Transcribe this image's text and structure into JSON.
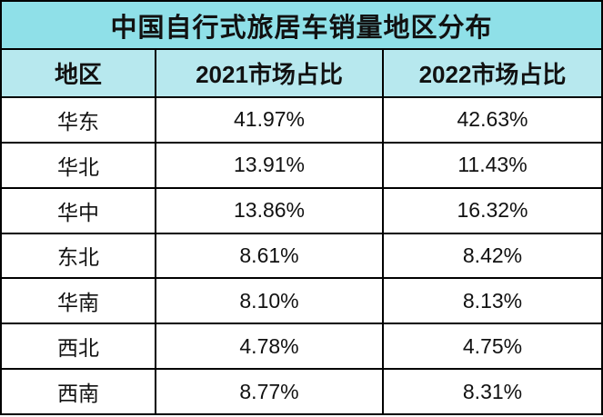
{
  "table": {
    "title": "中国自行式旅居车销量地区分布",
    "columns": [
      "地区",
      "2021市场占比",
      "2022市场占比"
    ]
  },
  "colors": {
    "title_bg": "#8FE0E8",
    "header_bg": "#B7E8EE",
    "border": "#000000",
    "row_bg": "#FFFFFF",
    "text": "#111111"
  },
  "chart_data": {
    "type": "table",
    "title": "中国自行式旅居车销量地区分布",
    "columns": [
      "地区",
      "2021市场占比",
      "2022市场占比"
    ],
    "rows": [
      [
        "华东",
        "41.97%",
        "42.63%"
      ],
      [
        "华北",
        "13.91%",
        "11.43%"
      ],
      [
        "华中",
        "13.86%",
        "16.32%"
      ],
      [
        "东北",
        "8.61%",
        "8.42%"
      ],
      [
        "华南",
        "8.10%",
        "8.13%"
      ],
      [
        "西北",
        "4.78%",
        "4.75%"
      ],
      [
        "西南",
        "8.77%",
        "8.31%"
      ]
    ],
    "layout": {
      "grid": "black ruled lines",
      "title_row_bg": "#8FE0E8",
      "header_row_bg": "#B7E8EE",
      "body_bg": "#FFFFFF"
    }
  }
}
